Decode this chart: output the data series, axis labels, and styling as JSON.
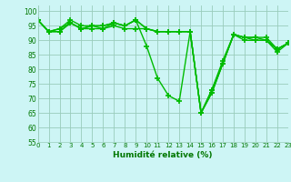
{
  "series": [
    {
      "x": [
        0,
        1,
        2,
        3,
        4,
        5,
        6,
        7,
        8,
        9,
        10,
        11,
        12,
        13,
        14,
        15,
        16,
        17,
        18,
        19,
        20,
        21,
        22,
        23
      ],
      "y": [
        97,
        93,
        94,
        96,
        94,
        95,
        95,
        96,
        95,
        97,
        94,
        93,
        93,
        93,
        93,
        65,
        72,
        82,
        92,
        91,
        91,
        90,
        87,
        89
      ]
    },
    {
      "x": [
        0,
        1,
        2,
        3,
        4,
        5,
        6,
        7,
        8,
        9,
        10,
        11,
        12,
        13,
        14,
        15,
        16,
        17,
        18,
        19,
        20,
        21,
        22,
        23
      ],
      "y": [
        97,
        93,
        93,
        96,
        94,
        94,
        94,
        95,
        94,
        94,
        94,
        93,
        93,
        93,
        93,
        65,
        73,
        83,
        92,
        91,
        91,
        91,
        87,
        89
      ]
    },
    {
      "x": [
        0,
        1,
        2,
        3,
        4,
        5,
        6,
        7,
        8,
        9,
        10,
        11,
        12,
        13,
        14,
        15,
        16,
        17,
        18,
        19,
        20,
        21,
        22,
        23
      ],
      "y": [
        97,
        93,
        94,
        97,
        95,
        95,
        95,
        96,
        95,
        97,
        88,
        77,
        71,
        69,
        93,
        65,
        72,
        82,
        92,
        90,
        90,
        90,
        87,
        89
      ]
    },
    {
      "x": [
        0,
        1,
        2,
        3,
        4,
        5,
        6,
        7,
        8,
        9,
        10,
        11,
        12,
        13,
        14,
        15,
        16,
        17,
        18,
        19,
        20,
        21,
        22,
        23
      ],
      "y": [
        97,
        93,
        93,
        96,
        94,
        95,
        94,
        96,
        95,
        97,
        94,
        93,
        93,
        93,
        93,
        65,
        73,
        82,
        92,
        91,
        90,
        90,
        86,
        89
      ]
    }
  ],
  "line_color": "#00bb00",
  "marker": "+",
  "markersize": 4,
  "linewidth": 1.0,
  "markeredgewidth": 1.2,
  "background_color": "#cdf5f5",
  "grid_color": "#99ccbb",
  "xlabel": "Humidité relative (%)",
  "xlabel_color": "#007700",
  "tick_color": "#007700",
  "xlim": [
    0,
    23
  ],
  "ylim": [
    55,
    102
  ],
  "yticks": [
    55,
    60,
    65,
    70,
    75,
    80,
    85,
    90,
    95,
    100
  ],
  "xticks": [
    0,
    1,
    2,
    3,
    4,
    5,
    6,
    7,
    8,
    9,
    10,
    11,
    12,
    13,
    14,
    15,
    16,
    17,
    18,
    19,
    20,
    21,
    22,
    23
  ]
}
